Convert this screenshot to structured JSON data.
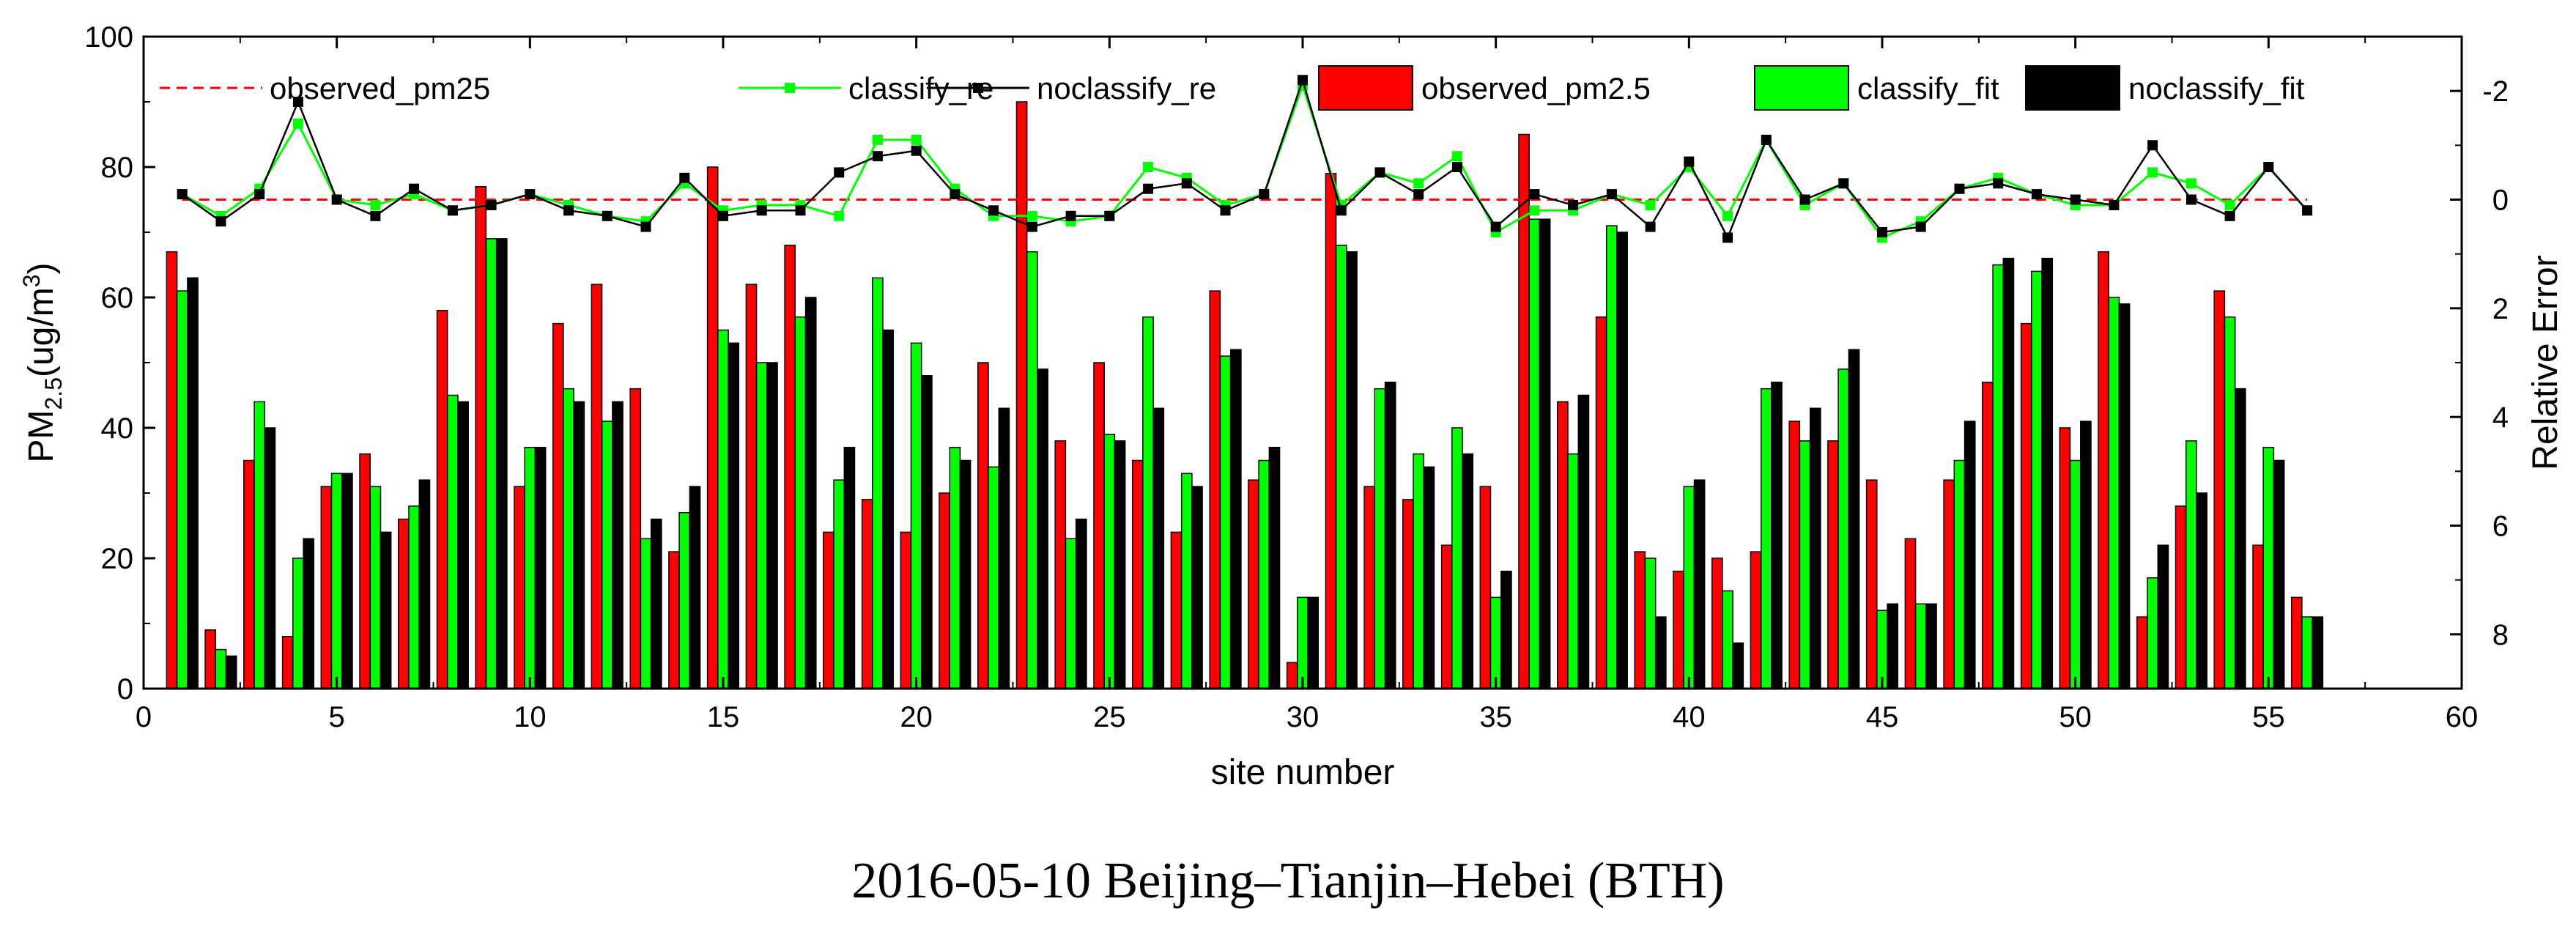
{
  "chart_data": {
    "type": "bar+line",
    "caption": "2016-05-10 Beijing–Tianjin–Hebei (BTH)",
    "xlabel": "site number",
    "ylabel_main": "PM",
    "ylabel_sub": "2.5",
    "ylabel_unit_open": "(ug/m",
    "ylabel_unit_sup": "3",
    "ylabel_unit_close": ")",
    "y2label": "Relative Error",
    "xlim": [
      0,
      60
    ],
    "ylim": [
      0,
      100
    ],
    "y2lim": [
      9,
      -3
    ],
    "x_ticks": [
      0,
      5,
      10,
      15,
      20,
      25,
      30,
      35,
      40,
      45,
      50,
      55,
      60
    ],
    "y_ticks": [
      0,
      20,
      40,
      60,
      80,
      100
    ],
    "y2_ticks": [
      8,
      6,
      4,
      2,
      0,
      -2
    ],
    "x_tick_labels": [
      "0",
      "5",
      "10",
      "15",
      "20",
      "25",
      "30",
      "35",
      "40",
      "45",
      "50",
      "55",
      "60"
    ],
    "y_tick_labels": [
      "0",
      "20",
      "40",
      "60",
      "80",
      "100"
    ],
    "y2_tick_labels": [
      "8",
      "6",
      "4",
      "2",
      "0",
      "-2"
    ],
    "sites": [
      1,
      2,
      3,
      4,
      5,
      6,
      7,
      8,
      9,
      10,
      11,
      12,
      13,
      14,
      15,
      16,
      17,
      18,
      19,
      20,
      21,
      22,
      23,
      24,
      25,
      26,
      27,
      28,
      29,
      30,
      31,
      32,
      33,
      34,
      35,
      36,
      37,
      38,
      39,
      40,
      41,
      42,
      43,
      44,
      45,
      46,
      47,
      48,
      49,
      50,
      51,
      52,
      53,
      54,
      55,
      56
    ],
    "bar_series": [
      {
        "name": "observed_pm2.5",
        "color": "#ff0000",
        "values": [
          67,
          9,
          35,
          8,
          31,
          36,
          26,
          58,
          77,
          31,
          56,
          62,
          46,
          21,
          80,
          62,
          68,
          24,
          29,
          24,
          30,
          50,
          90,
          38,
          50,
          35,
          24,
          61,
          32,
          4,
          79,
          31,
          29,
          22,
          31,
          85,
          44,
          57,
          21,
          18,
          20,
          21,
          41,
          38,
          32,
          23,
          32,
          47,
          56,
          40,
          67,
          11,
          28,
          61,
          22,
          14
        ]
      },
      {
        "name": "classify_fit",
        "color": "#00ff00",
        "values": [
          61,
          6,
          44,
          20,
          33,
          31,
          28,
          45,
          69,
          37,
          46,
          41,
          23,
          27,
          55,
          50,
          57,
          32,
          63,
          53,
          37,
          34,
          67,
          23,
          39,
          57,
          33,
          51,
          35,
          14,
          68,
          46,
          36,
          40,
          14,
          72,
          36,
          71,
          20,
          31,
          15,
          46,
          38,
          49,
          12,
          13,
          35,
          65,
          64,
          35,
          60,
          17,
          38,
          57,
          37,
          11
        ]
      },
      {
        "name": "noclassify_fit",
        "color": "#000000",
        "values": [
          63,
          5,
          40,
          23,
          33,
          24,
          32,
          44,
          69,
          37,
          44,
          44,
          26,
          31,
          53,
          50,
          60,
          37,
          55,
          48,
          35,
          43,
          49,
          26,
          38,
          43,
          31,
          52,
          37,
          14,
          67,
          47,
          34,
          36,
          18,
          72,
          45,
          70,
          11,
          32,
          7,
          47,
          43,
          52,
          13,
          13,
          41,
          66,
          66,
          41,
          59,
          22,
          30,
          46,
          35,
          11
        ]
      }
    ],
    "line_series": [
      {
        "name": "classify_re",
        "color": "#00ff00",
        "values": [
          -0.1,
          0.3,
          -0.2,
          -1.4,
          0,
          0.1,
          -0.1,
          0.2,
          0.1,
          -0.1,
          0.1,
          0.3,
          0.4,
          -0.3,
          0.2,
          0.1,
          0.1,
          0.3,
          -1.1,
          -1.1,
          -0.2,
          0.3,
          0.3,
          0.4,
          0.3,
          -0.6,
          -0.4,
          0.1,
          -0.1,
          -2.1,
          0.1,
          -0.5,
          -0.3,
          -0.8,
          0.6,
          0.2,
          0.2,
          -0.1,
          0.1,
          -0.6,
          0.3,
          -1.1,
          0.1,
          -0.3,
          0.7,
          0.4,
          -0.2,
          -0.4,
          -0.1,
          0.1,
          0.1,
          -0.5,
          -0.3,
          0.1,
          -0.6,
          0.2
        ]
      },
      {
        "name": "noclassify_re",
        "color": "#000000",
        "values": [
          -0.1,
          0.4,
          -0.1,
          -1.8,
          0,
          0.3,
          -0.2,
          0.2,
          0.1,
          -0.1,
          0.2,
          0.3,
          0.5,
          -0.4,
          0.3,
          0.2,
          0.2,
          -0.5,
          -0.8,
          -0.9,
          -0.1,
          0.2,
          0.5,
          0.3,
          0.3,
          -0.2,
          -0.3,
          0.2,
          -0.1,
          -2.2,
          0.2,
          -0.5,
          -0.1,
          -0.6,
          0.5,
          -0.1,
          0.1,
          -0.1,
          0.5,
          -0.7,
          0.7,
          -1.1,
          0,
          -0.3,
          0.6,
          0.5,
          -0.2,
          -0.3,
          -0.1,
          0,
          0.1,
          -1.0,
          0,
          0.3,
          -0.6,
          0.2
        ]
      }
    ],
    "reference_line": {
      "name": "observed_pm25",
      "value": 0,
      "color": "#ff0000"
    },
    "legend": [
      {
        "label": "observed_pm25",
        "kind": "dashed-line",
        "color": "#ff0000"
      },
      {
        "label": "classify_re",
        "kind": "line-marker",
        "color": "#00ff00"
      },
      {
        "label": "noclassify_re",
        "kind": "line-marker",
        "color": "#000000"
      },
      {
        "label": "observed_pm2.5",
        "kind": "box",
        "color": "#ff0000"
      },
      {
        "label": "classify_fit",
        "kind": "box",
        "color": "#00ff00"
      },
      {
        "label": "noclassify_fit",
        "kind": "box",
        "color": "#000000"
      }
    ]
  }
}
